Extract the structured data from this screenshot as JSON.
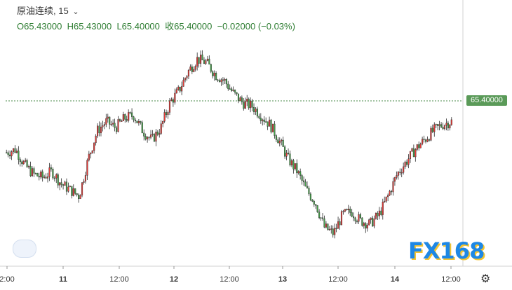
{
  "header": {
    "symbol": "原油连续",
    "interval": "15",
    "ohlc": {
      "o": "O65.43000",
      "h": "H65.43000",
      "l": "L65.40000",
      "c": "收65.40000",
      "chg": "−0.02000",
      "chg_pct": "(−0.03%)"
    }
  },
  "price_label": "65.40000",
  "watermark": "FX168",
  "icons": {
    "chart_button": "area-chart-icon",
    "settings": "gear-icon"
  },
  "colors": {
    "up": "#e53935",
    "down": "#43a047",
    "line": "#4caf50",
    "tag": "#5a9a58"
  },
  "chart_data": {
    "type": "candlestick",
    "x_tick_labels": [
      "2:00",
      "11",
      "12:00",
      "12",
      "12:00",
      "13",
      "12:00",
      "14",
      "12:00"
    ],
    "last_price": 65.4,
    "grid": true,
    "ohlc_path_approx": [
      64.9,
      64.95,
      64.7,
      64.55,
      64.5,
      64.6,
      64.4,
      64.3,
      64.2,
      64.8,
      65.25,
      65.4,
      65.3,
      65.45,
      65.5,
      65.25,
      65.1,
      65.3,
      65.7,
      65.9,
      66.2,
      66.4,
      66.35,
      66.15,
      66.05,
      65.85,
      65.7,
      65.65,
      65.5,
      65.35,
      65.1,
      64.8,
      64.6,
      64.3,
      64.1,
      63.7,
      63.6,
      63.9,
      63.95,
      63.8,
      63.75,
      63.9,
      64.2,
      64.55,
      64.75,
      64.95,
      65.1,
      65.25,
      65.35,
      65.4
    ]
  }
}
